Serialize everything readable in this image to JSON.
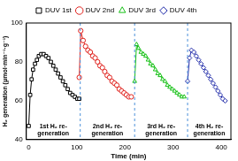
{
  "chart_data": {
    "type": "line",
    "x_label": "Time (min)",
    "y_label": "H₂ generation (μmol·min⁻¹·g⁻¹)",
    "xlim": [
      -5,
      420
    ],
    "xticks": [
      0,
      100,
      200,
      300,
      400
    ],
    "ylim": [
      40,
      100
    ],
    "yticks": [
      40,
      60,
      80,
      100
    ],
    "grid": false,
    "legend": "top",
    "vlines": [
      107,
      220,
      330
    ],
    "annotations": [
      [
        "1st H₂ re-",
        "generation"
      ],
      [
        "2nd H₂ re-",
        "generation"
      ],
      [
        "3rd H₂ re-",
        "generation"
      ],
      [
        "4th H₂ re-",
        "generation"
      ]
    ],
    "series": [
      {
        "name": "DUV 1st",
        "color": "#000000",
        "marker": "square",
        "x": [
          0,
          3,
          6,
          9,
          13,
          17,
          21,
          26,
          31,
          36,
          41,
          46,
          51,
          56,
          61,
          66,
          71,
          76,
          81,
          86,
          91,
          96,
          101,
          105
        ],
        "values": [
          47,
          63,
          71,
          76,
          79,
          81,
          83,
          84,
          84,
          83,
          82,
          80,
          78,
          76,
          74,
          72,
          70,
          68,
          66,
          64,
          63,
          62,
          61,
          61
        ]
      },
      {
        "name": "DUV 2nd",
        "color": "#e0201b",
        "marker": "circle",
        "x": [
          105,
          108,
          113,
          118,
          123,
          128,
          133,
          138,
          143,
          148,
          153,
          158,
          163,
          168,
          173,
          178,
          183,
          188,
          193,
          198,
          203,
          208,
          213
        ],
        "values": [
          72,
          96,
          91,
          88,
          86,
          85,
          83,
          82,
          80,
          78,
          77,
          75,
          73,
          72,
          70,
          69,
          68,
          66,
          65,
          64,
          63,
          62,
          62
        ]
      },
      {
        "name": "DUV 3rd",
        "color": "#16c016",
        "marker": "triangle",
        "x": [
          220,
          224,
          228,
          233,
          238,
          243,
          248,
          253,
          258,
          263,
          268,
          273,
          278,
          283,
          288,
          293,
          298,
          303,
          308,
          313,
          318,
          323
        ],
        "values": [
          70,
          89,
          87,
          85,
          84,
          83,
          81,
          79,
          78,
          76,
          74,
          73,
          71,
          70,
          68,
          67,
          66,
          65,
          64,
          63,
          62,
          62
        ]
      },
      {
        "name": "DUV 4th",
        "color": "#1f2aa8",
        "marker": "diamond",
        "x": [
          330,
          334,
          338,
          343,
          348,
          353,
          358,
          363,
          368,
          373,
          378,
          383,
          388,
          393,
          398,
          403,
          408
        ],
        "values": [
          70,
          82,
          86,
          85,
          83,
          81,
          79,
          77,
          75,
          73,
          71,
          69,
          67,
          65,
          63,
          61,
          60
        ]
      }
    ]
  }
}
